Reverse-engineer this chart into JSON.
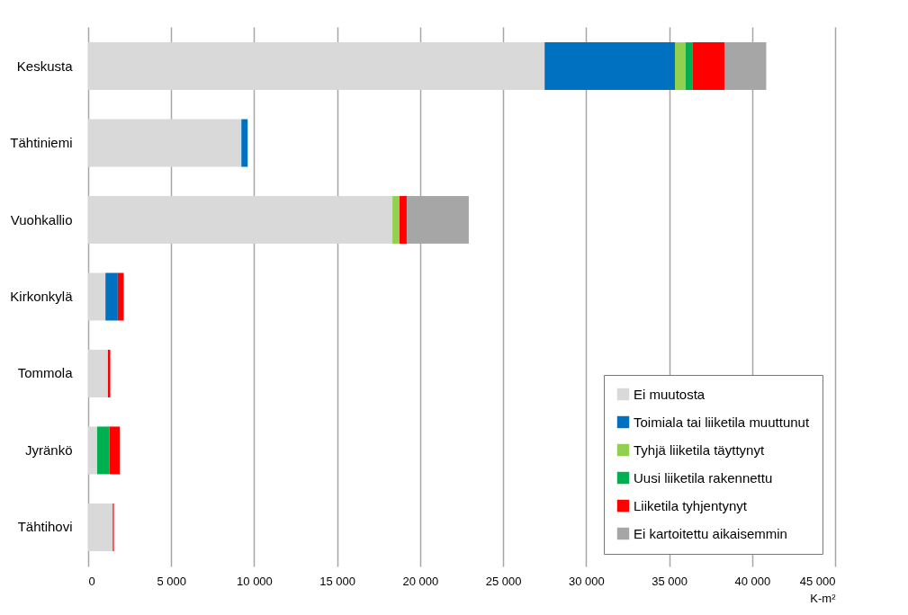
{
  "chart_data": {
    "type": "bar",
    "orientation": "horizontal",
    "stacked": true,
    "categories": [
      "Keskusta",
      "Tähtiniemi",
      "Vuohkallio",
      "Kirkonkylä",
      "Tommola",
      "Jyränkö",
      "Tähtihovi"
    ],
    "series": [
      {
        "name": "Ei muutosta",
        "color": "#d9d9d9",
        "values": [
          27500,
          9230,
          18330,
          1040,
          1190,
          540,
          1480
        ]
      },
      {
        "name": "Toimiala tai liiketila muuttunut",
        "color": "#0070c0",
        "values": [
          7850,
          380,
          0,
          740,
          0,
          0,
          0
        ]
      },
      {
        "name": "Tyhjä liiketila täyttynyt",
        "color": "#92d050",
        "values": [
          650,
          0,
          430,
          0,
          0,
          0,
          0
        ]
      },
      {
        "name": "Uusi liiketila rakennettu",
        "color": "#00b050",
        "values": [
          400,
          0,
          0,
          0,
          0,
          740,
          0
        ]
      },
      {
        "name": "Liiketila tyhjentynyt",
        "color": "#ff0000",
        "values": [
          1950,
          0,
          430,
          360,
          140,
          620,
          70
        ]
      },
      {
        "name": "Ei kartoitettu aikaisemmin",
        "color": "#a6a6a6",
        "values": [
          2500,
          0,
          3740,
          0,
          0,
          0,
          0
        ]
      }
    ],
    "xlabel": "K-m²",
    "xlim": [
      0,
      45000
    ],
    "xticks": [
      0,
      {
        "value": 5000,
        "label": "5 000"
      },
      {
        "value": 10000,
        "label": "10 000"
      },
      {
        "value": 15000,
        "label": "15 000"
      },
      {
        "value": 20000,
        "label": "20 000"
      },
      {
        "value": 25000,
        "label": "25 000"
      },
      {
        "value": 30000,
        "label": "30 000"
      },
      {
        "value": 35000,
        "label": "35 000"
      },
      {
        "value": 40000,
        "label": "40 000"
      },
      {
        "value": 45000,
        "label": "45 000"
      }
    ],
    "grid": "x",
    "legend": "bottom right"
  }
}
